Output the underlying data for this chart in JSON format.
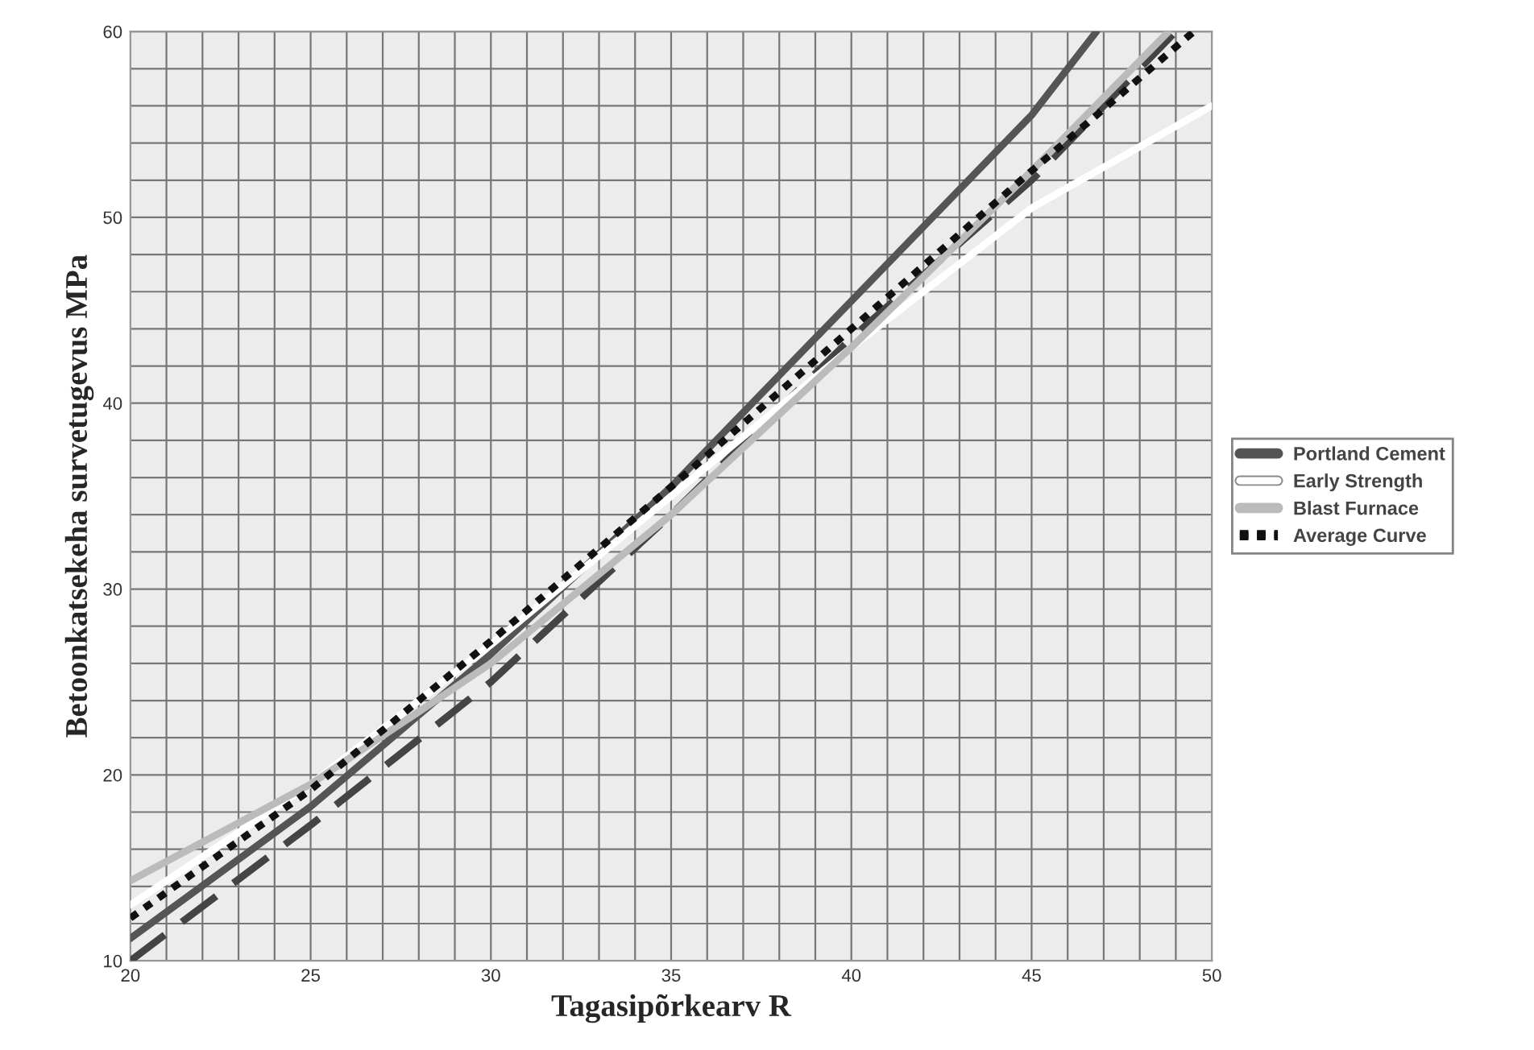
{
  "chart_data": {
    "type": "line",
    "xlabel": "Tagasipõrkearv R",
    "ylabel": "Betoonkatsekeha survetugevus MPa",
    "xlim": [
      20,
      50
    ],
    "ylim": [
      10,
      60
    ],
    "xticks": [
      20,
      {
        "value": 21,
        "label": null
      },
      {
        "value": 22,
        "label": null
      },
      {
        "value": 23,
        "label": null
      },
      {
        "value": 24,
        "label": null
      },
      25,
      {
        "value": 26,
        "label": null
      },
      {
        "value": 27,
        "label": null
      },
      {
        "value": 28,
        "label": null
      },
      {
        "value": 29,
        "label": null
      },
      30,
      {
        "value": 31,
        "label": null
      },
      {
        "value": 32,
        "label": null
      },
      {
        "value": 33,
        "label": null
      },
      {
        "value": 34,
        "label": null
      },
      35,
      {
        "value": 36,
        "label": null
      },
      {
        "value": 37,
        "label": null
      },
      {
        "value": 38,
        "label": null
      },
      {
        "value": 39,
        "label": null
      },
      40,
      {
        "value": 41,
        "label": null
      },
      {
        "value": 42,
        "label": null
      },
      {
        "value": 43,
        "label": null
      },
      {
        "value": 44,
        "label": null
      },
      45,
      {
        "value": 46,
        "label": null
      },
      {
        "value": 47,
        "label": null
      },
      {
        "value": 48,
        "label": null
      },
      {
        "value": 49,
        "label": null
      },
      50
    ],
    "yticks": [
      10,
      {
        "value": 12,
        "label": null
      },
      {
        "value": 14,
        "label": null
      },
      {
        "value": 16,
        "label": null
      },
      {
        "value": 18,
        "label": null
      },
      20,
      {
        "value": 22,
        "label": null
      },
      {
        "value": 24,
        "label": null
      },
      {
        "value": 26,
        "label": null
      },
      {
        "value": 28,
        "label": null
      },
      30,
      {
        "value": 32,
        "label": null
      },
      {
        "value": 34,
        "label": null
      },
      {
        "value": 36,
        "label": null
      },
      {
        "value": 38,
        "label": null
      },
      40,
      {
        "value": 42,
        "label": null
      },
      {
        "value": 44,
        "label": null
      },
      {
        "value": 46,
        "label": null
      },
      {
        "value": 48,
        "label": null
      },
      50,
      {
        "value": 52,
        "label": null
      },
      {
        "value": 54,
        "label": null
      },
      {
        "value": 56,
        "label": null
      },
      {
        "value": 58,
        "label": null
      },
      60
    ],
    "grid": true,
    "legend": "right",
    "series": [
      {
        "color": "#444444",
        "line_style": "dashed",
        "x": [
          20,
          25,
          30,
          35,
          40,
          45,
          49
        ],
        "values": [
          10,
          17.3,
          25,
          34,
          43.5,
          52,
          60
        ]
      },
      {
        "name": "Portland Cement",
        "color": "#555555",
        "line_style": "solid",
        "x": [
          20,
          25,
          30,
          35,
          40,
          45,
          46.8
        ],
        "values": [
          11.2,
          18.3,
          26.5,
          35.5,
          45.5,
          55.5,
          60
        ]
      },
      {
        "name": "Early Strength",
        "color": "#ffffff",
        "line_style": "solid",
        "x": [
          20,
          25,
          30,
          35,
          40,
          45,
          50
        ],
        "values": [
          13,
          19.5,
          27,
          35,
          43,
          50.5,
          56
        ]
      },
      {
        "name": "Blast Furnace",
        "color": "#bbbbbb",
        "line_style": "solid",
        "x": [
          20,
          25,
          30,
          35,
          40,
          45,
          48.8
        ],
        "values": [
          14.3,
          19.5,
          26,
          34,
          43,
          52.5,
          60
        ]
      },
      {
        "name": "Average Curve",
        "color": "#111111",
        "line_style": "dotted",
        "x": [
          20,
          25,
          30,
          35,
          40,
          45,
          49.5
        ],
        "values": [
          12.3,
          19.2,
          27.2,
          35.5,
          44,
          52.5,
          60
        ]
      }
    ]
  }
}
